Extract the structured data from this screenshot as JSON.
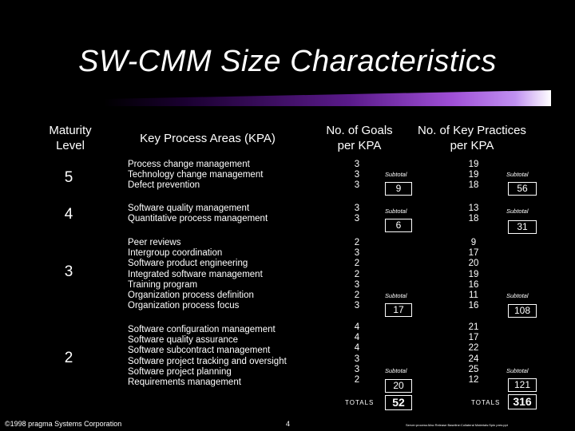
{
  "title": "SW-CMM Size Characteristics",
  "headers": {
    "maturity_level": "Maturity Level",
    "kpa": "Key Process Areas (KPA)",
    "goals": "No. of Goals per KPA",
    "practices": "No. of Key Practices per KPA"
  },
  "rows": [
    {
      "level": "5",
      "kpas": "Process change management\nTechnology change management\nDefect prevention",
      "goals": "3\n3\n3",
      "goals_subtotal": "9",
      "practices": "19\n19\n18",
      "practices_subtotal": "56"
    },
    {
      "level": "4",
      "kpas": "Software quality management\nQuantitative process management",
      "goals": "3\n3",
      "goals_subtotal": "6",
      "practices": "13\n18",
      "practices_subtotal": "31"
    },
    {
      "level": "3",
      "kpas": "Peer reviews\nIntergroup coordination\nSoftware product engineering\nIntegrated software management\nTraining program\nOrganization process definition\nOrganization process focus",
      "goals": "2\n3\n2\n2\n3\n2\n3",
      "goals_subtotal": "17",
      "practices": "9\n17\n20\n19\n16\n11\n16",
      "practices_subtotal": "108"
    },
    {
      "level": "2",
      "kpas": "Software configuration management\nSoftware quality assurance\nSoftware subcontract management\nSoftware project tracking and oversight\nSoftware project planning\nRequirements management",
      "goals": "4\n4\n4\n3\n3\n2",
      "goals_subtotal": "20",
      "practices": "21\n17\n22\n24\n25\n12",
      "practices_subtotal": "121"
    }
  ],
  "subtotal_label": "Subtotal",
  "totals_label": "TOTALS",
  "goals_total": "52",
  "practices_total": "316",
  "footer": {
    "copyright": "©1998 pragma Systems Corporation",
    "page": "4",
    "path": "Server:process:Mac Release Baseline:Collateral Materials:Spin pres:ppt"
  }
}
